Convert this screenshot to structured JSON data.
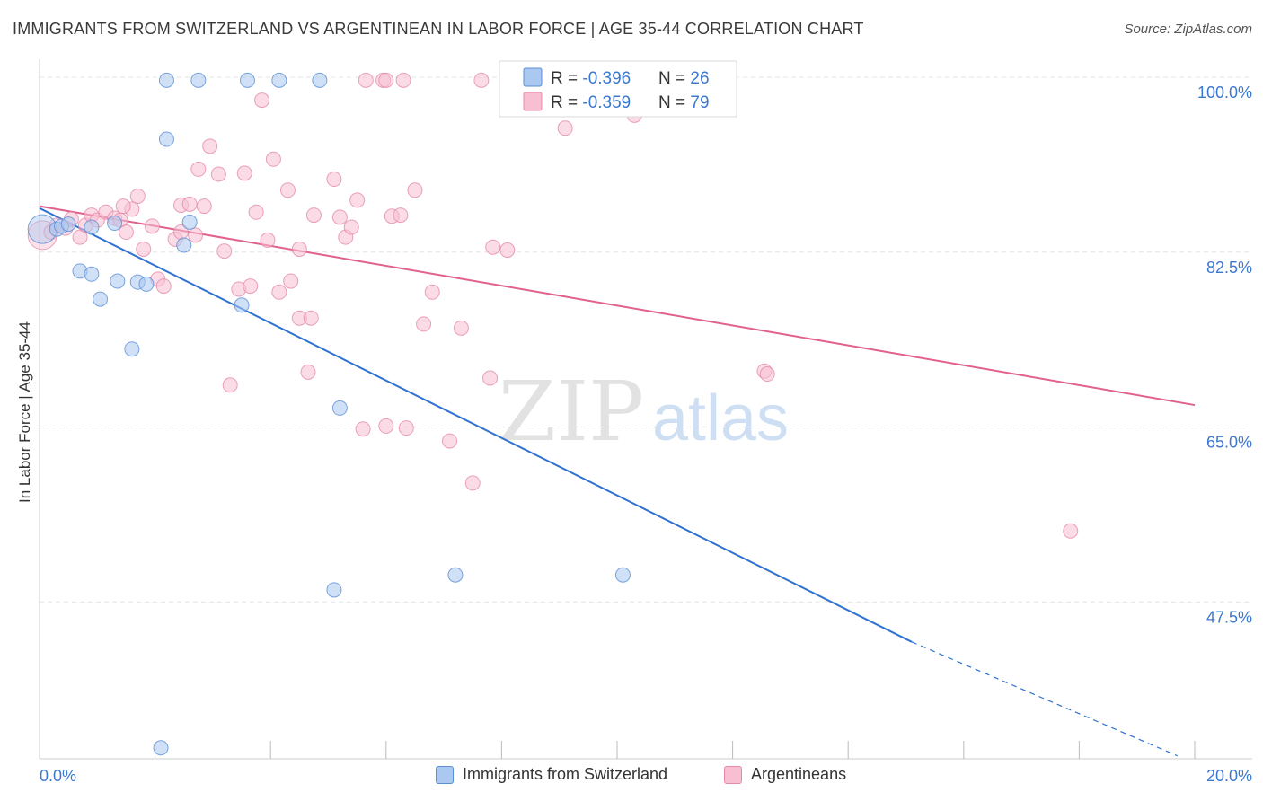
{
  "title": "IMMIGRANTS FROM SWITZERLAND VS ARGENTINEAN IN LABOR FORCE | AGE 35-44 CORRELATION CHART",
  "source": "Source: ZipAtlas.com",
  "watermark": {
    "zip": "ZIP",
    "atlas": "atlas"
  },
  "legend_stats": [
    {
      "r_label": "R = ",
      "r_value": "-0.396",
      "n_label": "N = ",
      "n_value": "26"
    },
    {
      "r_label": "R = ",
      "r_value": "-0.359",
      "n_label": "N = ",
      "n_value": "79"
    }
  ],
  "chart_data": {
    "type": "scatter",
    "title": "IMMIGRANTS FROM SWITZERLAND VS ARGENTINEAN IN LABOR FORCE | AGE 35-44 CORRELATION CHART",
    "xlabel": "",
    "ylabel": "In Labor Force | Age 35-44",
    "xlim": [
      0,
      20
    ],
    "ylim": [
      31.8,
      101.8
    ],
    "x_tick_labels": [
      {
        "value": 0,
        "label": "0.0%"
      },
      {
        "value": 20,
        "label": "20.0%"
      }
    ],
    "y_tick_labels": [
      {
        "value": 100,
        "label": "100.0%"
      },
      {
        "value": 82.5,
        "label": "82.5%"
      },
      {
        "value": 65,
        "label": "65.0%"
      },
      {
        "value": 47.5,
        "label": "47.5%"
      }
    ],
    "x_minor_ticks": [
      2,
      4,
      6,
      8,
      10,
      12,
      14,
      16,
      18,
      20
    ],
    "grid": true,
    "legend_position": "bottom",
    "colors": {
      "series1_fill": "#aac8f0",
      "series1_stroke": "#5b8fd6",
      "series1_line": "#2f72d0",
      "series2_fill": "#f8bfd2",
      "series2_stroke": "#e58aa9",
      "series2_line": "#e2608e",
      "tick_text": "#3b78d0"
    },
    "series": [
      {
        "name": "Immigrants from Switzerland",
        "r": -0.396,
        "n": 26,
        "trend": {
          "x": [
            0,
            15.1
          ],
          "y": [
            86.9,
            43.5
          ]
        },
        "trend_dashed": {
          "x": [
            15.1,
            19.7
          ],
          "y": [
            43.5,
            32.1
          ]
        },
        "points": [
          {
            "x": 0.05,
            "y": 84.8,
            "big": true
          },
          {
            "x": 0.3,
            "y": 84.8
          },
          {
            "x": 0.38,
            "y": 85.1
          },
          {
            "x": 0.5,
            "y": 85.3
          },
          {
            "x": 0.9,
            "y": 85.0
          },
          {
            "x": 1.3,
            "y": 85.4
          },
          {
            "x": 0.7,
            "y": 80.6
          },
          {
            "x": 0.9,
            "y": 80.3
          },
          {
            "x": 1.35,
            "y": 79.6
          },
          {
            "x": 1.7,
            "y": 79.5
          },
          {
            "x": 1.85,
            "y": 79.3
          },
          {
            "x": 1.05,
            "y": 77.8
          },
          {
            "x": 1.6,
            "y": 72.8
          },
          {
            "x": 2.2,
            "y": 93.8
          },
          {
            "x": 2.6,
            "y": 85.5
          },
          {
            "x": 2.5,
            "y": 83.2
          },
          {
            "x": 3.5,
            "y": 77.2
          },
          {
            "x": 5.2,
            "y": 66.9
          },
          {
            "x": 5.1,
            "y": 48.7
          },
          {
            "x": 7.2,
            "y": 50.2
          },
          {
            "x": 10.1,
            "y": 50.2
          },
          {
            "x": 2.1,
            "y": 32.9
          },
          {
            "x": 2.2,
            "y": 99.7
          },
          {
            "x": 2.75,
            "y": 99.7
          },
          {
            "x": 3.6,
            "y": 99.7
          },
          {
            "x": 4.15,
            "y": 99.7
          },
          {
            "x": 4.85,
            "y": 99.7
          }
        ]
      },
      {
        "name": "Argentineans",
        "r": -0.359,
        "n": 79,
        "trend": {
          "x": [
            0,
            20
          ],
          "y": [
            87.1,
            67.2
          ]
        },
        "points": [
          {
            "x": 0.05,
            "y": 84.2,
            "big": true
          },
          {
            "x": 0.2,
            "y": 84.5
          },
          {
            "x": 0.3,
            "y": 85.2
          },
          {
            "x": 0.45,
            "y": 84.9
          },
          {
            "x": 0.55,
            "y": 85.8
          },
          {
            "x": 0.7,
            "y": 84.0
          },
          {
            "x": 0.8,
            "y": 85.2
          },
          {
            "x": 0.9,
            "y": 86.2
          },
          {
            "x": 1.0,
            "y": 85.7
          },
          {
            "x": 1.15,
            "y": 86.5
          },
          {
            "x": 1.3,
            "y": 85.9
          },
          {
            "x": 1.4,
            "y": 85.7
          },
          {
            "x": 1.5,
            "y": 84.5
          },
          {
            "x": 1.6,
            "y": 86.8
          },
          {
            "x": 1.7,
            "y": 88.1
          },
          {
            "x": 1.45,
            "y": 87.1
          },
          {
            "x": 1.8,
            "y": 82.8
          },
          {
            "x": 1.95,
            "y": 85.1
          },
          {
            "x": 2.05,
            "y": 79.8
          },
          {
            "x": 2.15,
            "y": 79.1
          },
          {
            "x": 2.35,
            "y": 83.8
          },
          {
            "x": 2.45,
            "y": 84.5
          },
          {
            "x": 2.45,
            "y": 87.2
          },
          {
            "x": 2.6,
            "y": 87.3
          },
          {
            "x": 2.7,
            "y": 84.2
          },
          {
            "x": 2.75,
            "y": 90.8
          },
          {
            "x": 2.85,
            "y": 87.1
          },
          {
            "x": 2.95,
            "y": 93.1
          },
          {
            "x": 3.1,
            "y": 90.3
          },
          {
            "x": 3.2,
            "y": 82.6
          },
          {
            "x": 3.3,
            "y": 69.2
          },
          {
            "x": 3.45,
            "y": 78.8
          },
          {
            "x": 3.55,
            "y": 90.4
          },
          {
            "x": 3.65,
            "y": 79.1
          },
          {
            "x": 3.75,
            "y": 86.5
          },
          {
            "x": 3.85,
            "y": 97.7
          },
          {
            "x": 3.95,
            "y": 83.7
          },
          {
            "x": 4.05,
            "y": 91.8
          },
          {
            "x": 4.15,
            "y": 78.5
          },
          {
            "x": 4.3,
            "y": 88.7
          },
          {
            "x": 4.35,
            "y": 79.6
          },
          {
            "x": 4.5,
            "y": 75.9
          },
          {
            "x": 4.5,
            "y": 82.8
          },
          {
            "x": 4.7,
            "y": 75.9
          },
          {
            "x": 4.65,
            "y": 70.5
          },
          {
            "x": 4.75,
            "y": 86.2
          },
          {
            "x": 5.1,
            "y": 89.8
          },
          {
            "x": 5.2,
            "y": 86.0
          },
          {
            "x": 5.3,
            "y": 84.0
          },
          {
            "x": 5.4,
            "y": 85.0
          },
          {
            "x": 5.5,
            "y": 87.7
          },
          {
            "x": 5.6,
            "y": 64.8
          },
          {
            "x": 6.0,
            "y": 65.1
          },
          {
            "x": 6.1,
            "y": 86.1
          },
          {
            "x": 6.25,
            "y": 86.2
          },
          {
            "x": 6.35,
            "y": 64.9
          },
          {
            "x": 6.5,
            "y": 88.7
          },
          {
            "x": 6.65,
            "y": 75.3
          },
          {
            "x": 6.8,
            "y": 78.5
          },
          {
            "x": 7.1,
            "y": 63.6
          },
          {
            "x": 7.3,
            "y": 74.9
          },
          {
            "x": 7.5,
            "y": 59.4
          },
          {
            "x": 7.8,
            "y": 69.9
          },
          {
            "x": 7.85,
            "y": 83.0
          },
          {
            "x": 8.1,
            "y": 82.7
          },
          {
            "x": 9.1,
            "y": 94.9
          },
          {
            "x": 10.3,
            "y": 96.2
          },
          {
            "x": 12.55,
            "y": 70.6
          },
          {
            "x": 12.6,
            "y": 70.3
          },
          {
            "x": 17.85,
            "y": 54.6
          },
          {
            "x": 5.65,
            "y": 99.7
          },
          {
            "x": 5.95,
            "y": 99.7
          },
          {
            "x": 6.3,
            "y": 99.7
          },
          {
            "x": 7.65,
            "y": 99.7
          },
          {
            "x": 6.0,
            "y": 99.7
          }
        ]
      }
    ]
  },
  "bottom_legend": [
    {
      "label": "Immigrants from Switzerland",
      "fill": "#aac8f0",
      "stroke": "#5b8fd6"
    },
    {
      "label": "Argentineans",
      "fill": "#f8bfd2",
      "stroke": "#e58aa9"
    }
  ]
}
